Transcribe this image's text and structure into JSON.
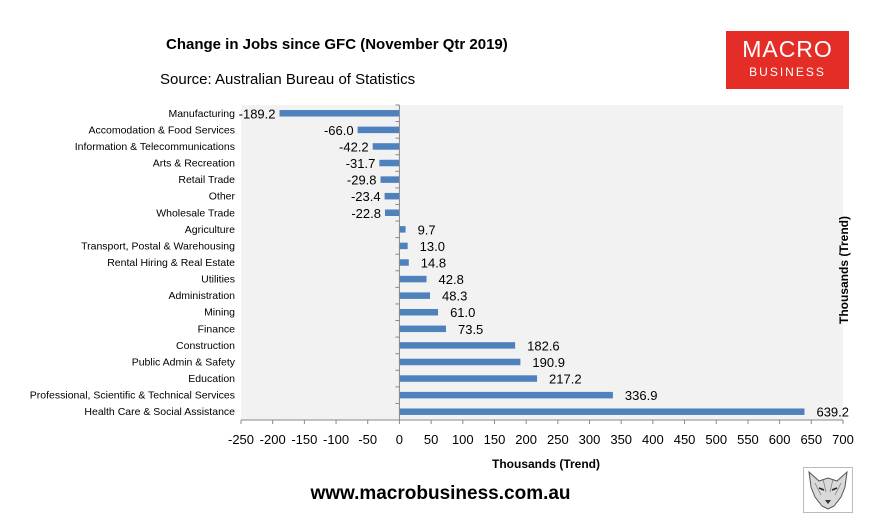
{
  "header": {
    "title": "Change in Jobs since GFC (November Qtr 2019)",
    "subtitle": "Source: Australian Bureau of Statistics"
  },
  "logo": {
    "line1": "MACRO",
    "line2": "BUSINESS",
    "color": "#e52d27"
  },
  "footer": {
    "url": "www.macrobusiness.com.au",
    "icon": "fox-head-icon"
  },
  "chart_data": {
    "type": "bar",
    "orientation": "horizontal",
    "title": "Change in Jobs since GFC (November Qtr 2019)",
    "xlabel": "Thousands (Trend)",
    "ylabel": "Thousands (Trend)",
    "xlim": [
      -250,
      700
    ],
    "x_ticks": [
      -250,
      -200,
      -150,
      -100,
      -50,
      0,
      50,
      100,
      150,
      200,
      250,
      300,
      350,
      400,
      450,
      500,
      550,
      600,
      650,
      700
    ],
    "categories": [
      "Manufacturing",
      "Accomodation & Food Services",
      "Information & Telecommunications",
      "Arts & Recreation",
      "Retail Trade",
      "Other",
      "Wholesale Trade",
      "Agriculture",
      "Transport, Postal & Warehousing",
      "Rental Hiring & Real Estate",
      "Utilities",
      "Administration",
      "Mining",
      "Finance",
      "Construction",
      "Public Admin & Safety",
      "Education",
      "Professional, Scientific & Technical Services",
      "Health Care & Social Assistance"
    ],
    "values": [
      -189.2,
      -66.0,
      -42.2,
      -31.7,
      -29.8,
      -23.4,
      -22.8,
      9.7,
      13.0,
      14.8,
      42.8,
      48.3,
      61.0,
      73.5,
      182.6,
      190.9,
      217.2,
      336.9,
      639.2
    ],
    "value_labels": [
      "-189.2",
      "-66.0",
      "-42.2",
      "-31.7",
      "-29.8",
      "-23.4",
      "-22.8",
      "9.7",
      "13.0",
      "14.8",
      "42.8",
      "48.3",
      "61.0",
      "73.5",
      "182.6",
      "190.9",
      "217.2",
      "336.9",
      "639.2"
    ],
    "bar_color": "#4f81bd",
    "plot_background": "#f2f2f2",
    "grid": false,
    "legend": "none"
  }
}
